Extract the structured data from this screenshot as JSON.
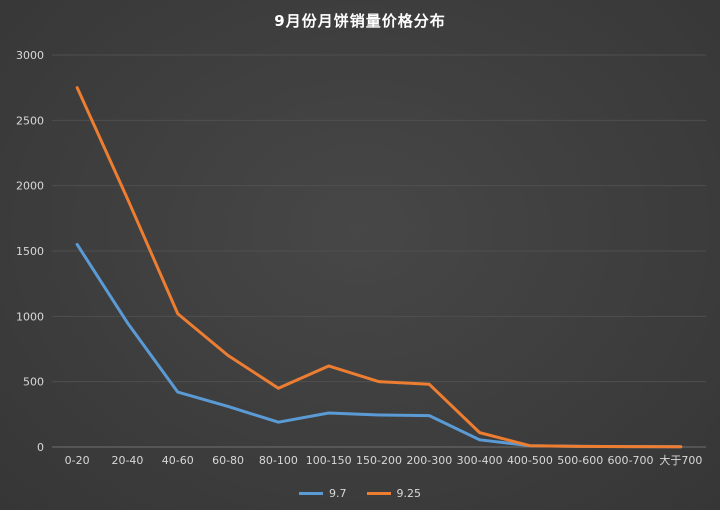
{
  "chart_data": {
    "type": "line",
    "title": "9月份月饼销量价格分布",
    "xlabel": "",
    "ylabel": "",
    "categories": [
      "0-20",
      "20-40",
      "40-60",
      "60-80",
      "80-100",
      "100-150",
      "150-200",
      "200-300",
      "300-400",
      "400-500",
      "500-600",
      "600-700",
      "大于700"
    ],
    "series": [
      {
        "name": "9.7",
        "color": "#5B9BD5",
        "values": [
          1550,
          950,
          420,
          310,
          190,
          260,
          245,
          240,
          55,
          10,
          5,
          3,
          2
        ]
      },
      {
        "name": "9.25",
        "color": "#ED7D31",
        "values": [
          2750,
          1900,
          1020,
          700,
          450,
          620,
          500,
          480,
          110,
          10,
          5,
          3,
          2
        ]
      }
    ],
    "ylim": [
      0,
      3000
    ],
    "ytick_step": 500,
    "yticks": [
      0,
      500,
      1000,
      1500,
      2000,
      2500,
      3000
    ],
    "grid": true,
    "legend_position": "bottom",
    "colors": {
      "background_center": "#474747",
      "background_edge": "#363636",
      "grid": "#4f4f4f",
      "axis": "#707070",
      "tick_text": "#d8d8d8",
      "title_text": "#ffffff"
    }
  }
}
